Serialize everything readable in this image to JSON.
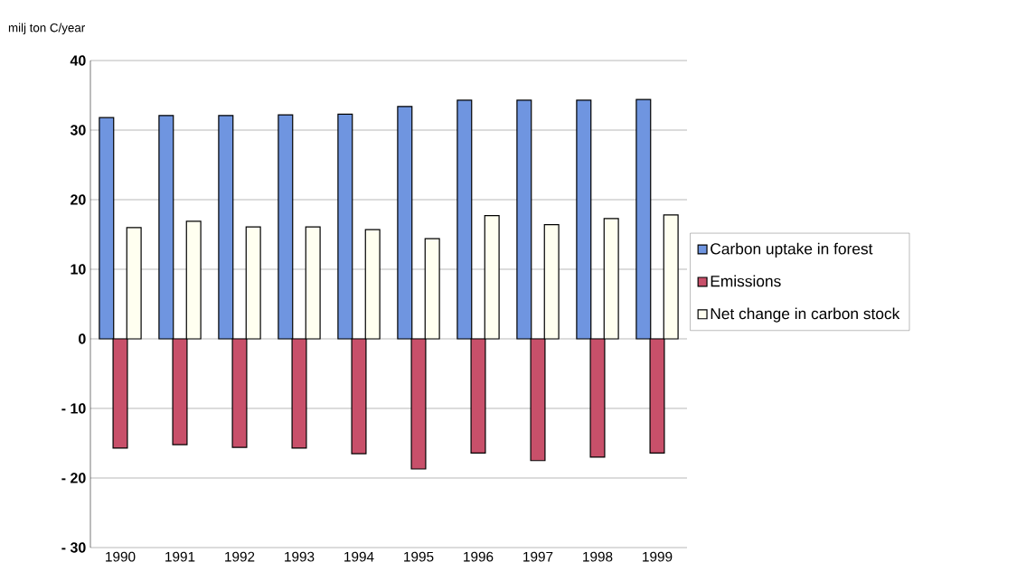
{
  "chart_data": {
    "type": "bar",
    "ylabel": "milj ton C/year",
    "categories": [
      "1990",
      "1991",
      "1992",
      "1993",
      "1994",
      "1995",
      "1996",
      "1997",
      "1998",
      "1999"
    ],
    "series": [
      {
        "name": "Carbon uptake in forest",
        "color": "#6f95e0",
        "values": [
          31.8,
          32.1,
          32.1,
          32.2,
          32.3,
          33.4,
          34.3,
          34.3,
          34.3,
          34.4
        ]
      },
      {
        "name": "Emissions",
        "color": "#c8506a",
        "values": [
          -15.7,
          -15.2,
          -15.6,
          -15.7,
          -16.5,
          -18.7,
          -16.4,
          -17.5,
          -17.0,
          -16.4
        ]
      },
      {
        "name": "Net change in carbon stock",
        "color": "#fffff0",
        "values": [
          16.0,
          16.9,
          16.1,
          16.1,
          15.7,
          14.4,
          17.7,
          16.4,
          17.3,
          17.8
        ]
      }
    ],
    "ylim": [
      -30,
      40
    ],
    "yticks": [
      {
        "value": -30,
        "label": "- 30"
      },
      {
        "value": -20,
        "label": "- 20"
      },
      {
        "value": -10,
        "label": "- 10"
      },
      0,
      10,
      20,
      30,
      40
    ],
    "grid": "y",
    "legend": "right"
  }
}
